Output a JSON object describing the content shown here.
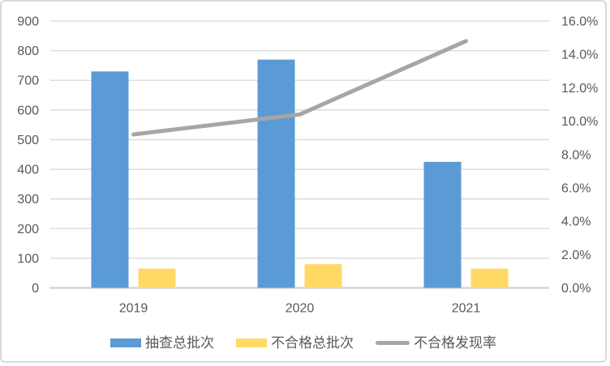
{
  "chart_data": {
    "type": "combo-bar-line",
    "title": "",
    "categories": [
      "2019",
      "2020",
      "2021"
    ],
    "series": [
      {
        "name": "抽查总批次",
        "kind": "bar",
        "axis": "left",
        "color": "#5B9BD5",
        "values": [
          730,
          770,
          425
        ]
      },
      {
        "name": "不合格总批次",
        "kind": "bar",
        "axis": "left",
        "color": "#FFD966",
        "values": [
          65,
          80,
          65
        ]
      },
      {
        "name": "不合格发现率",
        "kind": "line",
        "axis": "right",
        "color": "#A6A6A6",
        "unit": "%",
        "values": [
          9.2,
          10.4,
          14.8
        ]
      }
    ],
    "left_axis": {
      "min": 0,
      "max": 900,
      "step": 100,
      "tick_labels": [
        "0",
        "100",
        "200",
        "300",
        "400",
        "500",
        "600",
        "700",
        "800",
        "900"
      ]
    },
    "right_axis": {
      "min": 0,
      "max": 16,
      "step": 2,
      "tick_labels": [
        "0.0%",
        "2.0%",
        "4.0%",
        "6.0%",
        "8.0%",
        "10.0%",
        "12.0%",
        "14.0%",
        "16.0%"
      ]
    },
    "grid": true,
    "legend_position": "bottom"
  },
  "colors": {
    "bar_blue": "#5B9BD5",
    "bar_yellow": "#FFD966",
    "line_gray": "#A6A6A6",
    "gridline": "#D9D9D9",
    "axis_line": "#D6D6D6",
    "axis_text": "#595959",
    "border": "#D9D9D9",
    "background": "#FFFFFF"
  }
}
